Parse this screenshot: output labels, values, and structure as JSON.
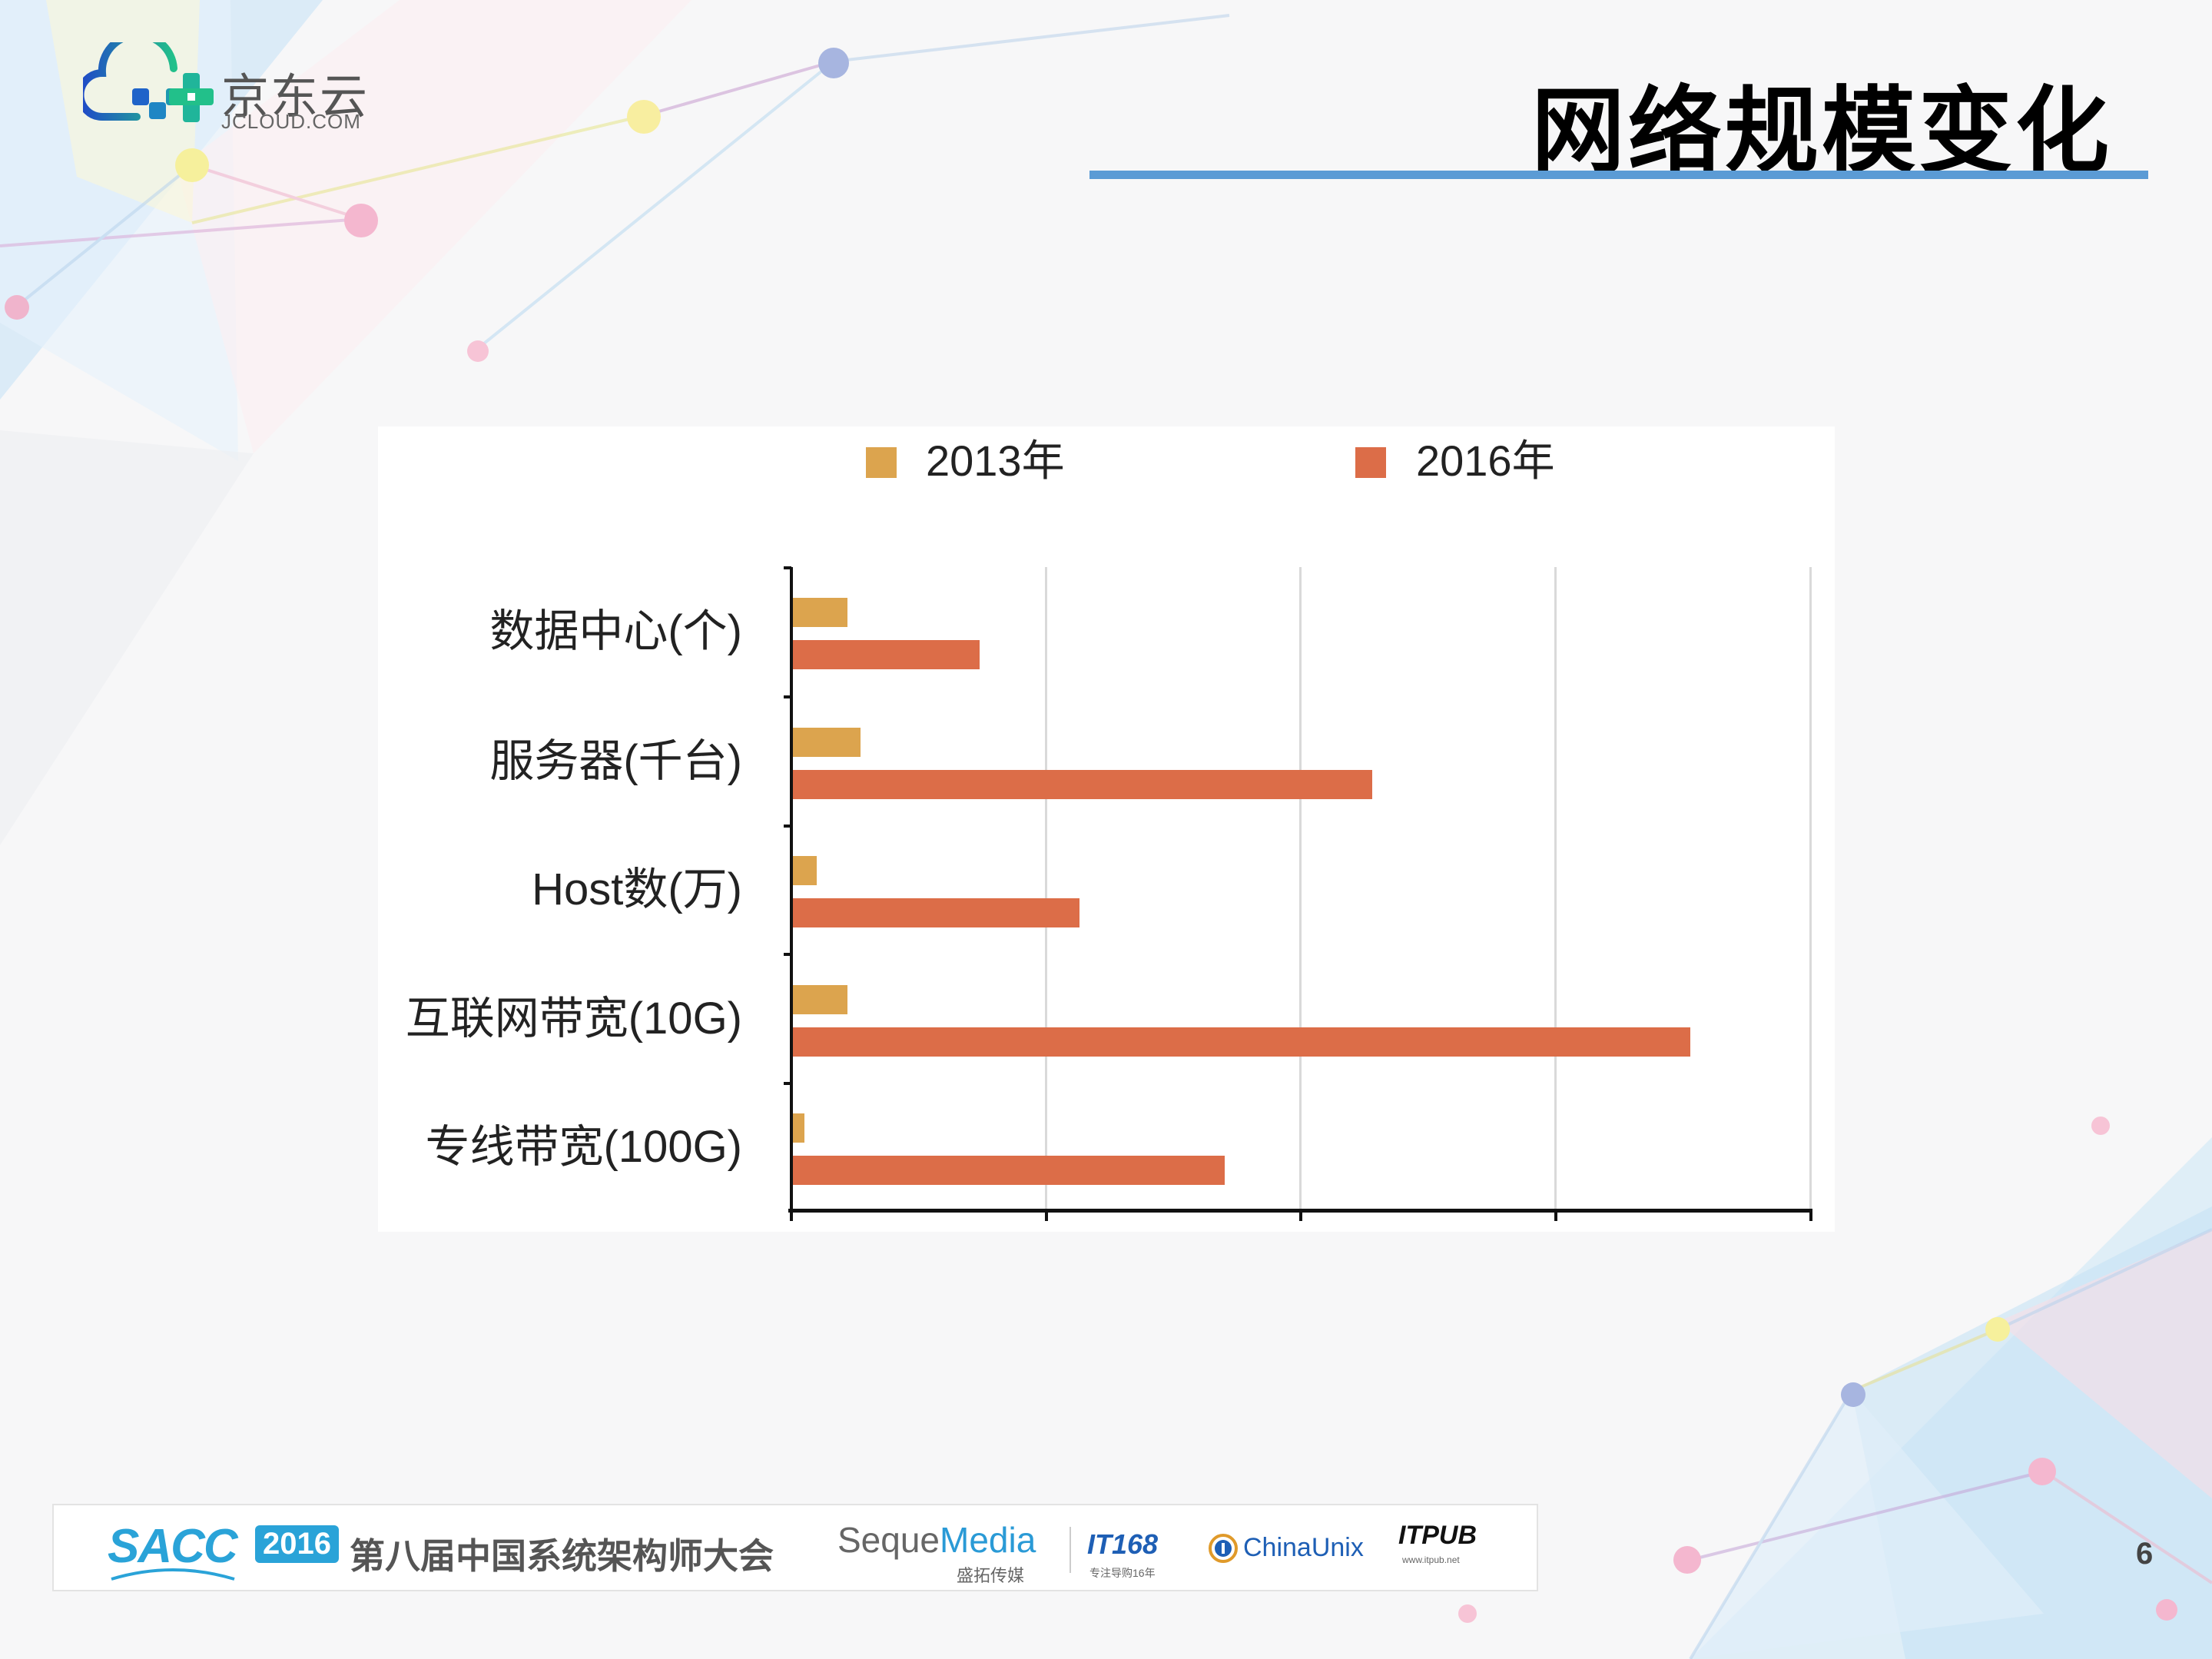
{
  "slide": {
    "title": "网络规模变化",
    "page_number": "6",
    "colors": {
      "title_rule": "#5b9bd5",
      "series_2013": "#dca44e",
      "series_2016": "#dc6d48"
    }
  },
  "logo": {
    "cn": "京东云",
    "en": "JCLOUD.COM"
  },
  "footer": {
    "sacc": "SACC",
    "year": "2016",
    "conference": "第八届中国系统架构师大会",
    "seque_a": "Seque",
    "seque_b": "Media",
    "seque_cn": "盛拓传媒",
    "it168": "IT168",
    "it168_sub": "专注导购16年",
    "chinaunix": "ChinaUnix",
    "itpub": "ITPUB",
    "itpub_sub": "www.itpub.net"
  },
  "chart_data": {
    "type": "bar",
    "orientation": "horizontal",
    "title": "",
    "xlabel": "",
    "ylabel": "",
    "categories": [
      "数据中心(个)",
      "服务器(千台)",
      "Host数(万)",
      "互联网带宽(10G)",
      "专线带宽(100G)"
    ],
    "series": [
      {
        "name": "2013年",
        "color": "#dca44e",
        "values": [
          0.22,
          0.27,
          0.1,
          0.22,
          0.05
        ]
      },
      {
        "name": "2016年",
        "color": "#dc6d48",
        "values": [
          0.74,
          2.28,
          1.13,
          3.53,
          1.7
        ]
      }
    ],
    "xlim": [
      0,
      4
    ],
    "x_tick_labels_shown": false,
    "value_units": "relative to gridline interval (no numeric tick labels shown)",
    "grid": true,
    "legend_position": "top"
  }
}
